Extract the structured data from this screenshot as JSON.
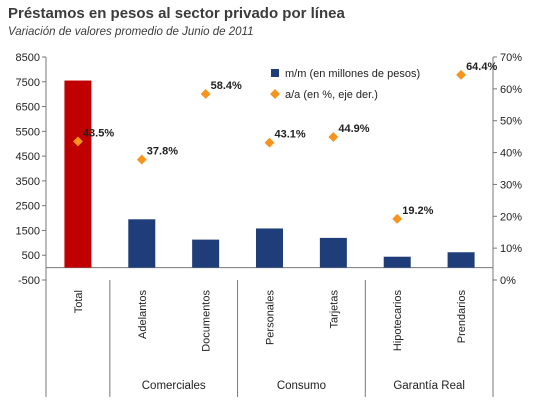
{
  "chart_data": {
    "type": "bar",
    "title": "Préstamos en pesos al sector privado por línea",
    "subtitle": "Variación de valores promedio de  Junio de 2011",
    "categories": [
      "Total",
      "Adelantos",
      "Documentos",
      "Personales",
      "Tarjetas",
      "Hipotecarios",
      "Prendarios"
    ],
    "series": [
      {
        "name": "m/m (en millones de pesos)",
        "kind": "bar",
        "axis": "left",
        "color": "#1f3e79",
        "highlight_color": "#c00000",
        "highlight_index": 0,
        "values": [
          7550,
          1950,
          1130,
          1580,
          1200,
          440,
          620
        ]
      },
      {
        "name": "a/a (en %, eje der.)",
        "kind": "scatter",
        "axis": "right",
        "color": "#f7941d",
        "values": [
          43.5,
          37.8,
          58.4,
          43.1,
          44.9,
          19.2,
          64.4
        ],
        "labels": [
          "43.5%",
          "37.8%",
          "58.4%",
          "43.1%",
          "44.9%",
          "19.2%",
          "64.4%"
        ]
      }
    ],
    "ylim_left": [
      -500,
      8500
    ],
    "yticks_left": [
      "-500",
      "500",
      "1500",
      "2500",
      "3500",
      "4500",
      "5500",
      "6500",
      "7500",
      "8500"
    ],
    "ylim_right": [
      0,
      70
    ],
    "yticks_right": [
      "0%",
      "10%",
      "20%",
      "30%",
      "40%",
      "50%",
      "60%",
      "70%"
    ],
    "groups": [
      {
        "label": "Comerciales",
        "from": 1,
        "to": 2
      },
      {
        "label": "Consumo",
        "from": 3,
        "to": 4
      },
      {
        "label": "Garantía Real",
        "from": 5,
        "to": 6
      }
    ],
    "legend_position": "top-right",
    "grid": false
  }
}
